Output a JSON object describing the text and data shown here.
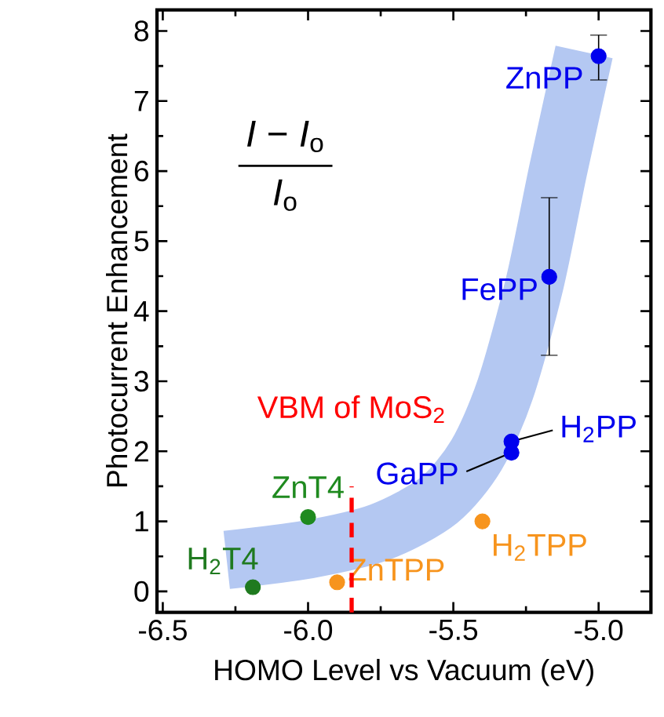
{
  "chart_data": {
    "type": "scatter",
    "xlabel": "HOMO Level vs Vacuum (eV)",
    "ylabel": "Photocurrent Enhancement",
    "xlim": [
      -6.52,
      -4.82
    ],
    "ylim": [
      -0.3,
      8.3
    ],
    "xticks": [
      -6.5,
      {
        "value": -6,
        "label": "-6.0"
      },
      -5.5,
      {
        "value": -5,
        "label": "-5.0"
      }
    ],
    "yticks": [
      0,
      1,
      2,
      3,
      4,
      5,
      6,
      7,
      8
    ],
    "grid": false,
    "annotations": [
      "*I* − *I*$_{o}$",
      "*I*$_{o}$"
    ],
    "ref_lines": [
      {
        "axis": "x",
        "value": -5.85,
        "label": "VBM of MoS$_{2}$",
        "color": "#ff0000",
        "line_style": "dashed"
      }
    ],
    "series": [
      {
        "type": "line",
        "marker": "none",
        "color": "#b4c8f2",
        "x": [
          -6.28,
          -6.0,
          -5.75,
          -5.55,
          -5.42,
          -5.32,
          -5.22,
          -5.14,
          -5.05
        ],
        "values": [
          0.45,
          0.6,
          0.85,
          1.3,
          1.95,
          2.9,
          4.4,
          6.0,
          7.7
        ]
      },
      {
        "name": "H$_{2}$T4",
        "marker": "circle",
        "color": "#1f7a1f",
        "x": [
          -6.19
        ],
        "values": [
          0.06
        ]
      },
      {
        "name": "ZnT4",
        "marker": "circle",
        "color": "#1f8a1f",
        "x": [
          -6.0
        ],
        "values": [
          1.06
        ]
      },
      {
        "name": "ZnTPP",
        "marker": "circle",
        "color": "#f7941d",
        "x": [
          -5.9
        ],
        "values": [
          0.13
        ]
      },
      {
        "name": "H$_{2}$TPP",
        "marker": "circle",
        "color": "#f7941d",
        "x": [
          -5.4
        ],
        "values": [
          1.0
        ]
      },
      {
        "name": "GaPP",
        "marker": "circle",
        "color": "#0000ee",
        "x": [
          -5.3
        ],
        "values": [
          1.98
        ]
      },
      {
        "name": "H$_{2}$PP",
        "marker": "circle",
        "color": "#0000ee",
        "x": [
          -5.3
        ],
        "values": [
          2.14
        ]
      },
      {
        "name": "FePP",
        "marker": "circle",
        "color": "#0000ee",
        "x": [
          -5.17
        ],
        "values": [
          4.49
        ],
        "errors": [
          [
            3.37,
            5.62
          ]
        ]
      },
      {
        "name": "ZnPP",
        "marker": "circle",
        "color": "#0000ee",
        "x": [
          -5.0
        ],
        "values": [
          7.64
        ],
        "errors": [
          [
            7.3,
            7.94
          ]
        ]
      }
    ]
  }
}
